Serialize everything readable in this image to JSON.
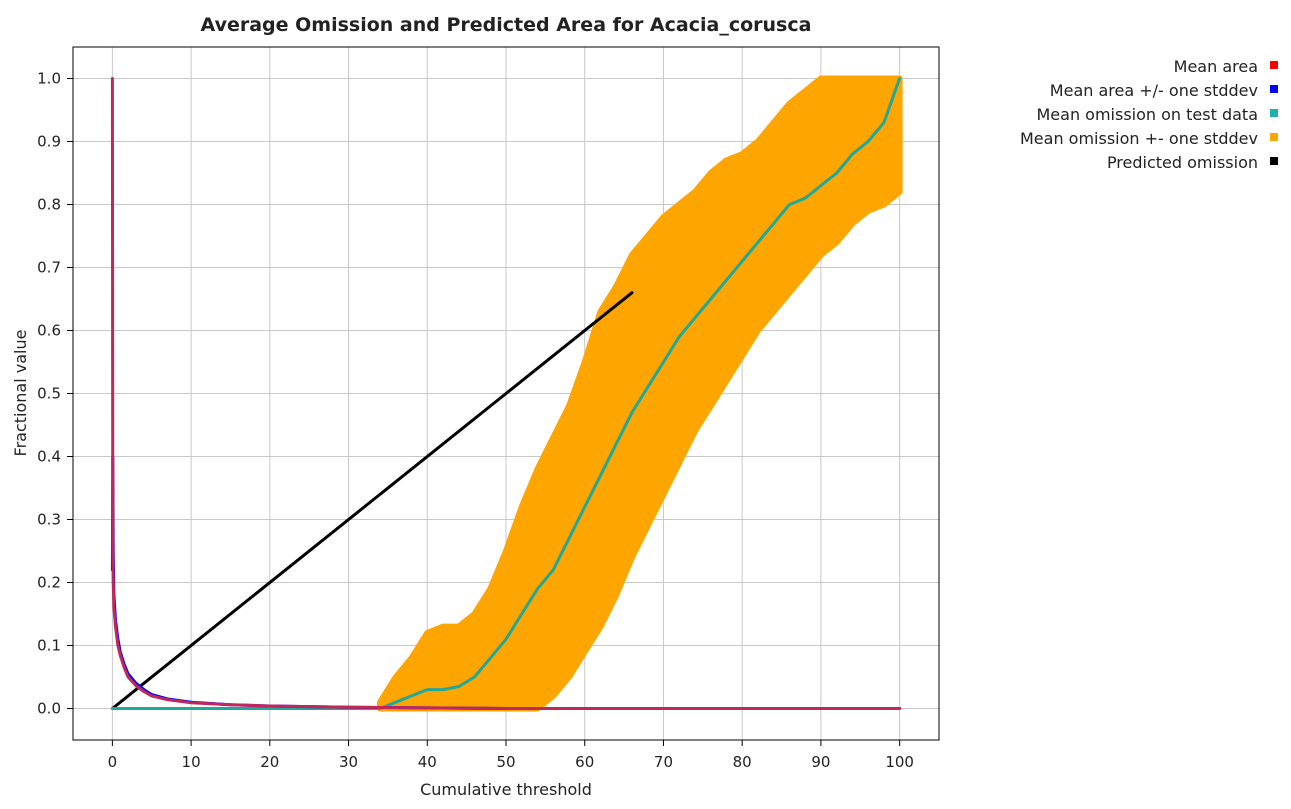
{
  "chart_data": {
    "type": "line",
    "title": "Average Omission and Predicted Area for Acacia_corusca",
    "xlabel": "Cumulative threshold",
    "ylabel": "Fractional value",
    "xlim": [
      -5,
      105
    ],
    "ylim": [
      -0.05,
      1.05
    ],
    "xticks": [
      0,
      10,
      20,
      30,
      40,
      50,
      60,
      70,
      80,
      90,
      100
    ],
    "yticks": [
      0.0,
      0.1,
      0.2,
      0.3,
      0.4,
      0.5,
      0.6,
      0.7,
      0.8,
      0.9,
      1.0
    ],
    "xtick_labels": [
      "0",
      "10",
      "20",
      "30",
      "40",
      "50",
      "60",
      "70",
      "80",
      "90",
      "100"
    ],
    "ytick_labels": [
      "0.0",
      "0.1",
      "0.2",
      "0.3",
      "0.4",
      "0.5",
      "0.6",
      "0.7",
      "0.8",
      "0.9",
      "1.0"
    ],
    "grid": true,
    "legend_position": "top-right",
    "series": [
      {
        "name": "Mean omission +- one stddev",
        "kind": "band",
        "color": "#ffa500",
        "x": [
          34,
          36,
          38,
          40,
          42,
          44,
          46,
          48,
          50,
          52,
          54,
          56,
          58,
          60,
          62,
          64,
          66,
          68,
          70,
          72,
          74,
          76,
          78,
          80,
          82,
          84,
          86,
          88,
          90,
          92,
          94,
          96,
          98,
          100
        ],
        "lower": [
          0,
          0,
          0,
          0,
          0,
          0,
          0,
          0,
          0,
          0,
          0,
          0.02,
          0.05,
          0.09,
          0.13,
          0.18,
          0.24,
          0.29,
          0.34,
          0.39,
          0.44,
          0.48,
          0.52,
          0.56,
          0.6,
          0.63,
          0.66,
          0.69,
          0.72,
          0.74,
          0.77,
          0.79,
          0.8,
          0.82
        ],
        "upper": [
          0.01,
          0.05,
          0.08,
          0.12,
          0.13,
          0.13,
          0.15,
          0.19,
          0.25,
          0.32,
          0.38,
          0.43,
          0.48,
          0.55,
          0.63,
          0.67,
          0.72,
          0.75,
          0.78,
          0.8,
          0.82,
          0.85,
          0.87,
          0.88,
          0.9,
          0.93,
          0.96,
          0.98,
          1.0,
          1.0,
          1.0,
          1.0,
          1.0,
          1.0
        ]
      },
      {
        "name": "Predicted omission",
        "kind": "line",
        "color": "#000000",
        "x": [
          0,
          66
        ],
        "y": [
          0,
          0.66
        ]
      },
      {
        "name": "Mean omission on test data",
        "kind": "line",
        "color": "#20a898",
        "x": [
          0,
          34,
          36,
          38,
          40,
          42,
          44,
          46,
          48,
          50,
          52,
          54,
          56,
          58,
          60,
          62,
          64,
          66,
          68,
          70,
          72,
          74,
          76,
          78,
          80,
          82,
          84,
          86,
          88,
          90,
          92,
          94,
          96,
          98,
          100
        ],
        "y": [
          0,
          0,
          0.01,
          0.02,
          0.03,
          0.03,
          0.035,
          0.05,
          0.08,
          0.11,
          0.15,
          0.19,
          0.22,
          0.27,
          0.32,
          0.37,
          0.42,
          0.47,
          0.51,
          0.55,
          0.59,
          0.62,
          0.65,
          0.68,
          0.71,
          0.74,
          0.77,
          0.8,
          0.81,
          0.83,
          0.85,
          0.88,
          0.9,
          0.93,
          1.0
        ]
      },
      {
        "name": "Mean area +/- one stddev",
        "kind": "line",
        "color": "#0000ff",
        "x": [
          0,
          0.05,
          0.1,
          0.2,
          0.4,
          0.7,
          1,
          1.5,
          2,
          3,
          4,
          5,
          7,
          10,
          15,
          20,
          25,
          30,
          40,
          50,
          60,
          70,
          80,
          90,
          100
        ],
        "y": [
          0.22,
          0.4,
          0.25,
          0.18,
          0.14,
          0.11,
          0.09,
          0.07,
          0.055,
          0.04,
          0.03,
          0.022,
          0.015,
          0.01,
          0.006,
          0.004,
          0.003,
          0.002,
          0.001,
          0.0,
          0.0,
          0.0,
          0.0,
          0.0,
          0.0
        ]
      },
      {
        "name": "Mean area",
        "kind": "line",
        "color": "#c0285a",
        "x": [
          0,
          0.05,
          0.1,
          0.2,
          0.4,
          0.7,
          1,
          1.5,
          2,
          3,
          4,
          5,
          7,
          10,
          15,
          20,
          25,
          30,
          40,
          50,
          60,
          70,
          80,
          90,
          100
        ],
        "y": [
          1.0,
          0.25,
          0.2,
          0.16,
          0.13,
          0.1,
          0.085,
          0.065,
          0.05,
          0.036,
          0.027,
          0.02,
          0.014,
          0.009,
          0.006,
          0.004,
          0.003,
          0.002,
          0.001,
          0.0,
          0.0,
          0.0,
          0.0,
          0.0,
          0.0
        ]
      }
    ],
    "legend": [
      {
        "label": "Mean area",
        "color": "#ff0000"
      },
      {
        "label": "Mean area +/- one stddev",
        "color": "#0000ff"
      },
      {
        "label": "Mean omission on test data",
        "color": "#20b2aa"
      },
      {
        "label": "Mean omission +- one stddev",
        "color": "#ffa500"
      },
      {
        "label": "Predicted omission",
        "color": "#000000"
      }
    ]
  }
}
